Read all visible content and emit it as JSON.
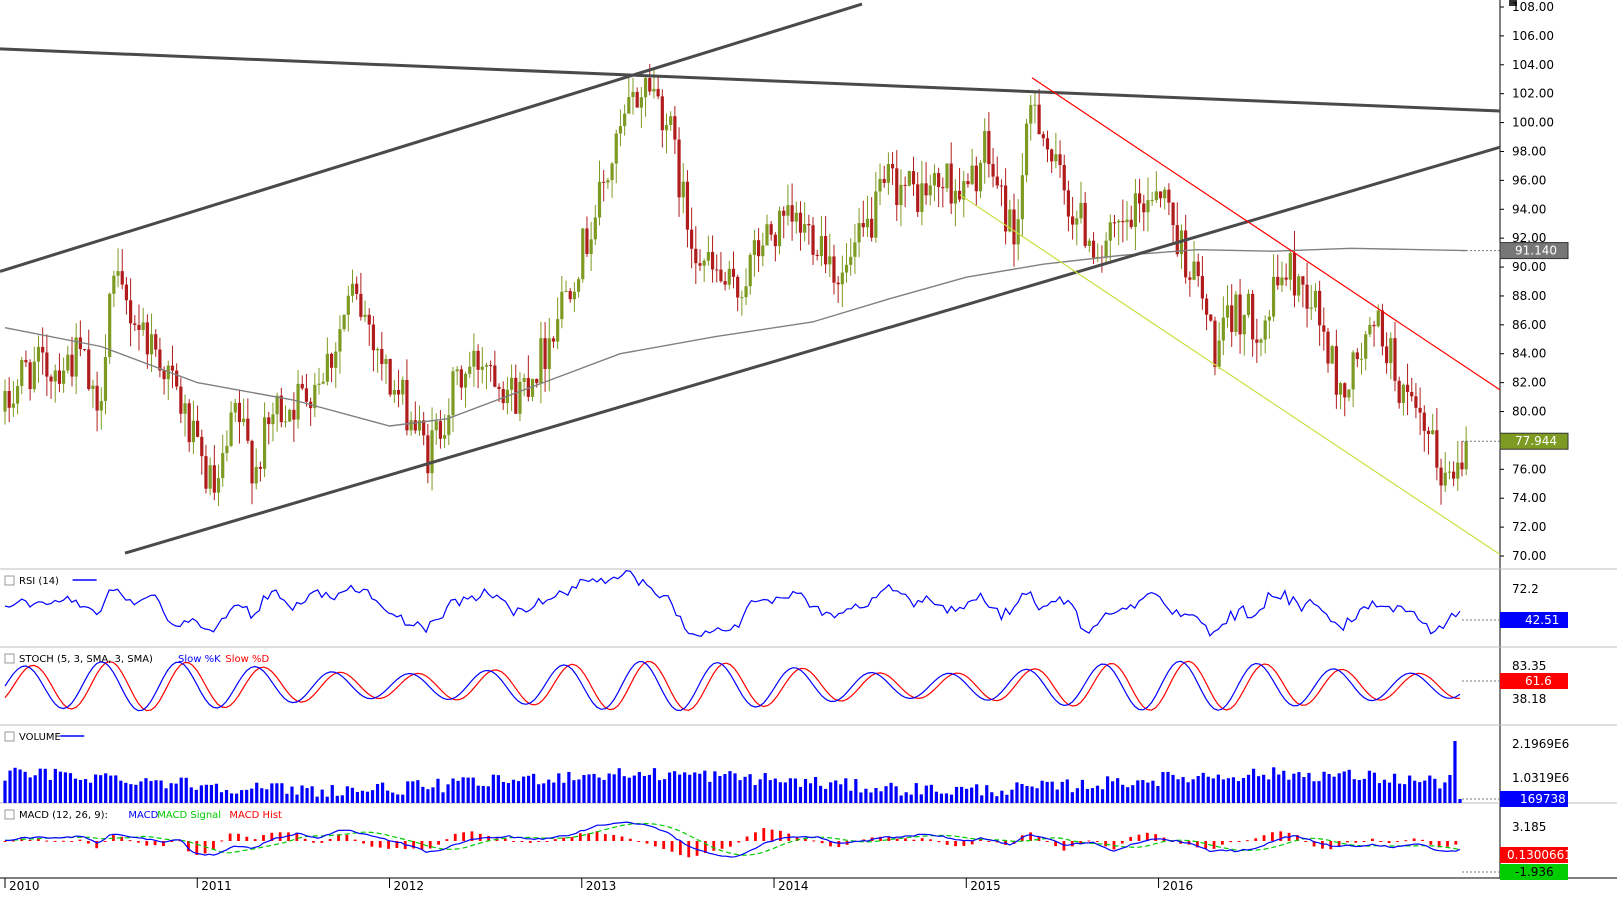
{
  "chart_data": [
    {
      "type": "candlestick",
      "panel": "price",
      "ylim": [
        70,
        108
      ],
      "y_ticks": [
        "108.00",
        "106.00",
        "104.00",
        "102.00",
        "100.00",
        "98.00",
        "96.00",
        "94.00",
        "92.00",
        "90.00",
        "88.00",
        "86.00",
        "84.00",
        "82.00",
        "80.00",
        "78.00",
        "76.00",
        "74.00",
        "72.00",
        "70.00"
      ],
      "x_labels": [
        "2010",
        "2011",
        "2012",
        "2013",
        "2014",
        "2015",
        "2016"
      ],
      "price_series_approx": [
        [
          2010.0,
          80
        ],
        [
          2010.1,
          83
        ],
        [
          2010.25,
          83
        ],
        [
          2010.4,
          84
        ],
        [
          2010.48,
          79
        ],
        [
          2010.55,
          89
        ],
        [
          2010.65,
          87
        ],
        [
          2010.8,
          84
        ],
        [
          2010.9,
          81
        ],
        [
          2011.0,
          77
        ],
        [
          2011.1,
          74
        ],
        [
          2011.2,
          80
        ],
        [
          2011.3,
          76
        ],
        [
          2011.4,
          80
        ],
        [
          2011.55,
          81
        ],
        [
          2011.7,
          84
        ],
        [
          2011.8,
          88
        ],
        [
          2011.9,
          86
        ],
        [
          2012.0,
          82
        ],
        [
          2012.1,
          80
        ],
        [
          2012.2,
          77
        ],
        [
          2012.35,
          82
        ],
        [
          2012.5,
          84
        ],
        [
          2012.65,
          81
        ],
        [
          2012.8,
          84
        ],
        [
          2012.9,
          88
        ],
        [
          2013.0,
          91
        ],
        [
          2013.15,
          97
        ],
        [
          2013.25,
          101
        ],
        [
          2013.35,
          103
        ],
        [
          2013.45,
          100
        ],
        [
          2013.55,
          93
        ],
        [
          2013.65,
          90
        ],
        [
          2013.8,
          88
        ],
        [
          2013.95,
          92
        ],
        [
          2014.1,
          93
        ],
        [
          2014.25,
          92
        ],
        [
          2014.35,
          89
        ],
        [
          2014.5,
          93
        ],
        [
          2014.6,
          96
        ],
        [
          2014.75,
          95
        ],
        [
          2014.9,
          96
        ],
        [
          2015.0,
          95
        ],
        [
          2015.1,
          98
        ],
        [
          2015.25,
          92
        ],
        [
          2015.35,
          102
        ],
        [
          2015.45,
          97
        ],
        [
          2015.55,
          94
        ],
        [
          2015.7,
          91
        ],
        [
          2015.85,
          93
        ],
        [
          2016.0,
          96
        ],
        [
          2016.1,
          92
        ],
        [
          2016.2,
          89
        ],
        [
          2016.3,
          84
        ],
        [
          2016.4,
          87
        ],
        [
          2016.55,
          86
        ],
        [
          2016.65,
          90
        ],
        [
          2016.8,
          88
        ],
        [
          2016.95,
          81
        ],
        [
          2017.05,
          84
        ],
        [
          2017.15,
          86
        ],
        [
          2017.3,
          80
        ],
        [
          2017.4,
          78
        ],
        [
          2017.5,
          75
        ],
        [
          2017.6,
          77.944
        ]
      ],
      "moving_average_approx": [
        [
          2010.0,
          85.8
        ],
        [
          2010.5,
          84.5
        ],
        [
          2011.0,
          82.0
        ],
        [
          2011.5,
          80.8
        ],
        [
          2012.0,
          79.0
        ],
        [
          2012.3,
          79.5
        ],
        [
          2012.8,
          82.0
        ],
        [
          2013.2,
          84.0
        ],
        [
          2013.7,
          85.2
        ],
        [
          2014.2,
          86.2
        ],
        [
          2014.6,
          87.8
        ],
        [
          2015.0,
          89.3
        ],
        [
          2015.4,
          90.2
        ],
        [
          2015.8,
          90.8
        ],
        [
          2016.2,
          91.2
        ],
        [
          2016.6,
          91.1
        ],
        [
          2017.0,
          91.3
        ],
        [
          2017.6,
          91.14
        ]
      ],
      "current_price_label": "77.944",
      "moving_average_label": "91.140"
    },
    {
      "type": "line",
      "panel": "rsi",
      "label": "RSI (14)",
      "y_ticks": [
        "72.2"
      ],
      "current_label": "42.51",
      "series_color": "#0000ff"
    },
    {
      "type": "line",
      "panel": "stoch",
      "label_prefix": "STOCH (5, 3, SMA, 3, SMA)",
      "label_k": "Slow %K",
      "label_d": "Slow %D",
      "y_ticks": [
        "83.35",
        "38.18"
      ],
      "current_label": "61.6",
      "colors": {
        "k": "#0000ff",
        "d": "#ff0000"
      }
    },
    {
      "type": "bar",
      "panel": "volume",
      "label": "VOLUME",
      "y_ticks": [
        "2.1969E6",
        "1.0319E6"
      ],
      "current_label": "169738",
      "series_color": "#0000ff"
    },
    {
      "type": "line",
      "panel": "macd",
      "label_prefix": "MACD (12, 26, 9):",
      "label_macd": "MACD",
      "label_signal": "MACD Signal",
      "label_hist": "MACD Hist",
      "y_ticks": [
        "3.185"
      ],
      "current_labels": [
        "0.1300661",
        "-1.936"
      ],
      "colors": {
        "macd": "#0000ff",
        "signal": "#00cc00",
        "hist": "#ff0000"
      }
    }
  ],
  "colors": {
    "up_candle": "#7d9b23",
    "down_candle": "#b01c1c",
    "trendline_dark": "#4a4a4a",
    "trendline_red": "#ff0000",
    "trendline_yellow": "#c8e040",
    "ma_line": "#808080",
    "price_label_bg": "#7d9b23",
    "ma_label_bg": "#777777",
    "stoch_label_bg": "#ff0000",
    "volume_label_bg": "#0000ff",
    "macd_label_bg": "#ff0000",
    "macd_signal_label_bg": "#00cc00"
  }
}
